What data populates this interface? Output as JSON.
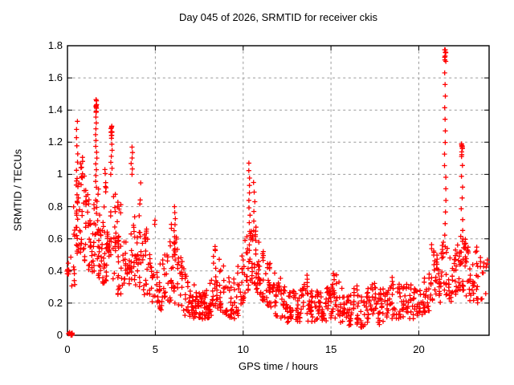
{
  "chart_data": {
    "type": "scatter",
    "title": "Day 045 of 2026, SRMTID for receiver ckis",
    "xlabel": "GPS time / hours",
    "ylabel": "SRMTID / TECUs",
    "xlim": [
      0,
      24
    ],
    "ylim": [
      0,
      1.8
    ],
    "xtick_values": [
      0,
      5,
      10,
      15,
      20
    ],
    "xtick_labels": [
      "0",
      "5",
      "10",
      "15",
      "20"
    ],
    "ytick_values": [
      0,
      0.2,
      0.4,
      0.6,
      0.8,
      1.0,
      1.2,
      1.4,
      1.6,
      1.8
    ],
    "ytick_labels": [
      "0",
      "0.2",
      "0.4",
      "0.6",
      "0.8",
      "1",
      "1.2",
      "1.4",
      "1.6",
      "1.8"
    ],
    "grid": true,
    "legend": "none",
    "marker": "plus",
    "colors": {
      "marker": "#ff0000",
      "grid": "#9a9a9a",
      "axis": "#000000",
      "background": "#ffffff"
    },
    "origin_cluster": {
      "x": 0.18,
      "y": 0.0,
      "n": 12
    },
    "peaks": [
      [
        0.55,
        1.33
      ],
      [
        1.65,
        1.47
      ],
      [
        2.5,
        1.3
      ],
      [
        3.7,
        1.17
      ],
      [
        6.1,
        0.8
      ],
      [
        10.35,
        1.07
      ],
      [
        21.5,
        1.77
      ],
      [
        22.45,
        1.19
      ]
    ],
    "spikes": [
      {
        "x": 0.55,
        "y_from": 0.62,
        "y_to": 1.33,
        "n": 15,
        "dense_top": false
      },
      {
        "x": 1.63,
        "y_from": 0.92,
        "y_to": 1.465,
        "n": 16,
        "dense_top": true
      },
      {
        "x": 2.5,
        "y_from": 1.0,
        "y_to": 1.3,
        "n": 9,
        "dense_top": true
      },
      {
        "x": 3.66,
        "y_from": 1.0,
        "y_to": 1.17,
        "n": 6,
        "dense_top": false
      },
      {
        "x": 6.1,
        "y_from": 0.5,
        "y_to": 0.8,
        "n": 9,
        "dense_top": false
      },
      {
        "x": 10.35,
        "y_from": 0.7,
        "y_to": 1.07,
        "n": 9,
        "dense_top": false
      },
      {
        "x": 10.62,
        "y_from": 0.65,
        "y_to": 0.95,
        "n": 6,
        "dense_top": false
      },
      {
        "x": 21.5,
        "y_from": 0.55,
        "y_to": 1.775,
        "n": 18,
        "dense_top": true
      },
      {
        "x": 22.45,
        "y_from": 0.45,
        "y_to": 1.19,
        "n": 12,
        "dense_top": true
      }
    ],
    "density_bins": [
      [
        0.05,
        0.38,
        0.47,
        6
      ],
      [
        0.3,
        0.3,
        0.5,
        5
      ],
      [
        0.45,
        0.5,
        0.8,
        8
      ],
      [
        0.6,
        0.5,
        0.95,
        10
      ],
      [
        0.75,
        0.45,
        1.05,
        9
      ],
      [
        0.85,
        0.9,
        1.26,
        5
      ],
      [
        0.95,
        0.5,
        1.0,
        9
      ],
      [
        1.1,
        0.45,
        0.9,
        9
      ],
      [
        1.3,
        0.4,
        0.85,
        10
      ],
      [
        1.5,
        0.38,
        0.8,
        10
      ],
      [
        1.65,
        0.4,
        0.92,
        12
      ],
      [
        1.8,
        0.35,
        0.8,
        12
      ],
      [
        2.0,
        0.3,
        0.72,
        10
      ],
      [
        2.15,
        0.78,
        1.02,
        4
      ],
      [
        2.2,
        0.3,
        0.65,
        10
      ],
      [
        2.4,
        0.35,
        0.78,
        10
      ],
      [
        2.6,
        0.35,
        0.9,
        10
      ],
      [
        2.8,
        0.3,
        0.72,
        10
      ],
      [
        2.95,
        0.68,
        0.92,
        4
      ],
      [
        3.0,
        0.25,
        0.6,
        10
      ],
      [
        3.2,
        0.28,
        0.65,
        9
      ],
      [
        3.4,
        0.3,
        0.6,
        9
      ],
      [
        3.6,
        0.32,
        0.7,
        9
      ],
      [
        3.8,
        0.3,
        0.75,
        9
      ],
      [
        4.0,
        0.28,
        0.8,
        9
      ],
      [
        4.2,
        0.28,
        0.95,
        10
      ],
      [
        4.4,
        0.25,
        0.7,
        9
      ],
      [
        4.6,
        0.25,
        0.62,
        8
      ],
      [
        4.8,
        0.2,
        0.5,
        8
      ],
      [
        5.0,
        0.18,
        0.72,
        8
      ],
      [
        5.2,
        0.15,
        0.5,
        8
      ],
      [
        5.4,
        0.15,
        0.45,
        8
      ],
      [
        5.6,
        0.18,
        0.55,
        8
      ],
      [
        5.8,
        0.2,
        0.65,
        8
      ],
      [
        6.0,
        0.22,
        0.75,
        10
      ],
      [
        6.2,
        0.2,
        0.7,
        10
      ],
      [
        6.4,
        0.18,
        0.55,
        8
      ],
      [
        6.6,
        0.15,
        0.45,
        8
      ],
      [
        6.8,
        0.12,
        0.4,
        8
      ],
      [
        7.0,
        0.1,
        0.36,
        8
      ],
      [
        7.2,
        0.1,
        0.32,
        9
      ],
      [
        7.4,
        0.08,
        0.3,
        10
      ],
      [
        7.6,
        0.1,
        0.28,
        11
      ],
      [
        7.8,
        0.1,
        0.3,
        11
      ],
      [
        8.0,
        0.1,
        0.3,
        10
      ],
      [
        8.2,
        0.12,
        0.35,
        9
      ],
      [
        8.4,
        0.15,
        0.55,
        10
      ],
      [
        8.6,
        0.15,
        0.5,
        10
      ],
      [
        8.8,
        0.12,
        0.45,
        9
      ],
      [
        9.0,
        0.12,
        0.4,
        8
      ],
      [
        9.2,
        0.1,
        0.35,
        8
      ],
      [
        9.4,
        0.1,
        0.35,
        8
      ],
      [
        9.6,
        0.12,
        0.4,
        8
      ],
      [
        9.8,
        0.15,
        0.45,
        9
      ],
      [
        10.0,
        0.2,
        0.55,
        10
      ],
      [
        10.2,
        0.25,
        0.65,
        10
      ],
      [
        10.4,
        0.3,
        0.68,
        11
      ],
      [
        10.6,
        0.32,
        0.65,
        12
      ],
      [
        10.8,
        0.25,
        0.6,
        10
      ],
      [
        11.0,
        0.2,
        0.55,
        9
      ],
      [
        11.2,
        0.2,
        0.5,
        9
      ],
      [
        11.4,
        0.15,
        0.46,
        8
      ],
      [
        11.6,
        0.15,
        0.44,
        8
      ],
      [
        11.8,
        0.12,
        0.4,
        8
      ],
      [
        12.0,
        0.1,
        0.36,
        8
      ],
      [
        12.2,
        0.1,
        0.3,
        8
      ],
      [
        12.4,
        0.08,
        0.28,
        8
      ],
      [
        12.6,
        0.08,
        0.28,
        8
      ],
      [
        12.8,
        0.1,
        0.3,
        8
      ],
      [
        13.0,
        0.08,
        0.25,
        9
      ],
      [
        13.2,
        0.08,
        0.3,
        8
      ],
      [
        13.4,
        0.08,
        0.3,
        8
      ],
      [
        13.6,
        0.1,
        0.38,
        8
      ],
      [
        13.8,
        0.08,
        0.3,
        8
      ],
      [
        14.0,
        0.08,
        0.28,
        8
      ],
      [
        14.2,
        0.06,
        0.25,
        8
      ],
      [
        14.4,
        0.08,
        0.26,
        8
      ],
      [
        14.6,
        0.08,
        0.28,
        8
      ],
      [
        14.8,
        0.1,
        0.3,
        8
      ],
      [
        15.0,
        0.1,
        0.33,
        8
      ],
      [
        15.2,
        0.1,
        0.42,
        9
      ],
      [
        15.4,
        0.1,
        0.38,
        8
      ],
      [
        15.6,
        0.08,
        0.32,
        8
      ],
      [
        15.8,
        0.08,
        0.28,
        8
      ],
      [
        16.0,
        0.06,
        0.26,
        8
      ],
      [
        16.2,
        0.08,
        0.28,
        8
      ],
      [
        16.4,
        0.08,
        0.3,
        8
      ],
      [
        16.6,
        0.06,
        0.25,
        8
      ],
      [
        16.8,
        0.05,
        0.22,
        9
      ],
      [
        17.0,
        0.06,
        0.24,
        9
      ],
      [
        17.2,
        0.08,
        0.3,
        8
      ],
      [
        17.4,
        0.1,
        0.33,
        8
      ],
      [
        17.6,
        0.08,
        0.3,
        8
      ],
      [
        17.8,
        0.06,
        0.28,
        8
      ],
      [
        18.0,
        0.08,
        0.3,
        8
      ],
      [
        18.2,
        0.1,
        0.32,
        8
      ],
      [
        18.4,
        0.1,
        0.35,
        8
      ],
      [
        18.6,
        0.08,
        0.3,
        8
      ],
      [
        18.8,
        0.1,
        0.3,
        8
      ],
      [
        19.0,
        0.1,
        0.32,
        8
      ],
      [
        19.2,
        0.12,
        0.36,
        8
      ],
      [
        19.4,
        0.1,
        0.32,
        8
      ],
      [
        19.6,
        0.1,
        0.3,
        8
      ],
      [
        19.8,
        0.1,
        0.32,
        8
      ],
      [
        20.0,
        0.12,
        0.35,
        8
      ],
      [
        20.2,
        0.12,
        0.38,
        8
      ],
      [
        20.4,
        0.14,
        0.42,
        8
      ],
      [
        20.6,
        0.15,
        0.46,
        9
      ],
      [
        20.8,
        0.2,
        0.55,
        10
      ],
      [
        21.0,
        0.24,
        0.62,
        10
      ],
      [
        21.2,
        0.2,
        0.5,
        9
      ],
      [
        21.4,
        0.28,
        0.6,
        9
      ],
      [
        21.6,
        0.25,
        0.55,
        9
      ],
      [
        21.8,
        0.2,
        0.5,
        8
      ],
      [
        22.0,
        0.2,
        0.55,
        9
      ],
      [
        22.2,
        0.25,
        0.6,
        10
      ],
      [
        22.4,
        0.28,
        0.65,
        10
      ],
      [
        22.6,
        0.25,
        0.6,
        10
      ],
      [
        22.8,
        0.2,
        0.55,
        9
      ],
      [
        23.0,
        0.2,
        0.5,
        8
      ],
      [
        23.2,
        0.24,
        0.6,
        8
      ],
      [
        23.4,
        0.2,
        0.55,
        7
      ],
      [
        23.6,
        0.2,
        0.5,
        6
      ],
      [
        23.8,
        0.25,
        0.45,
        4
      ]
    ]
  }
}
